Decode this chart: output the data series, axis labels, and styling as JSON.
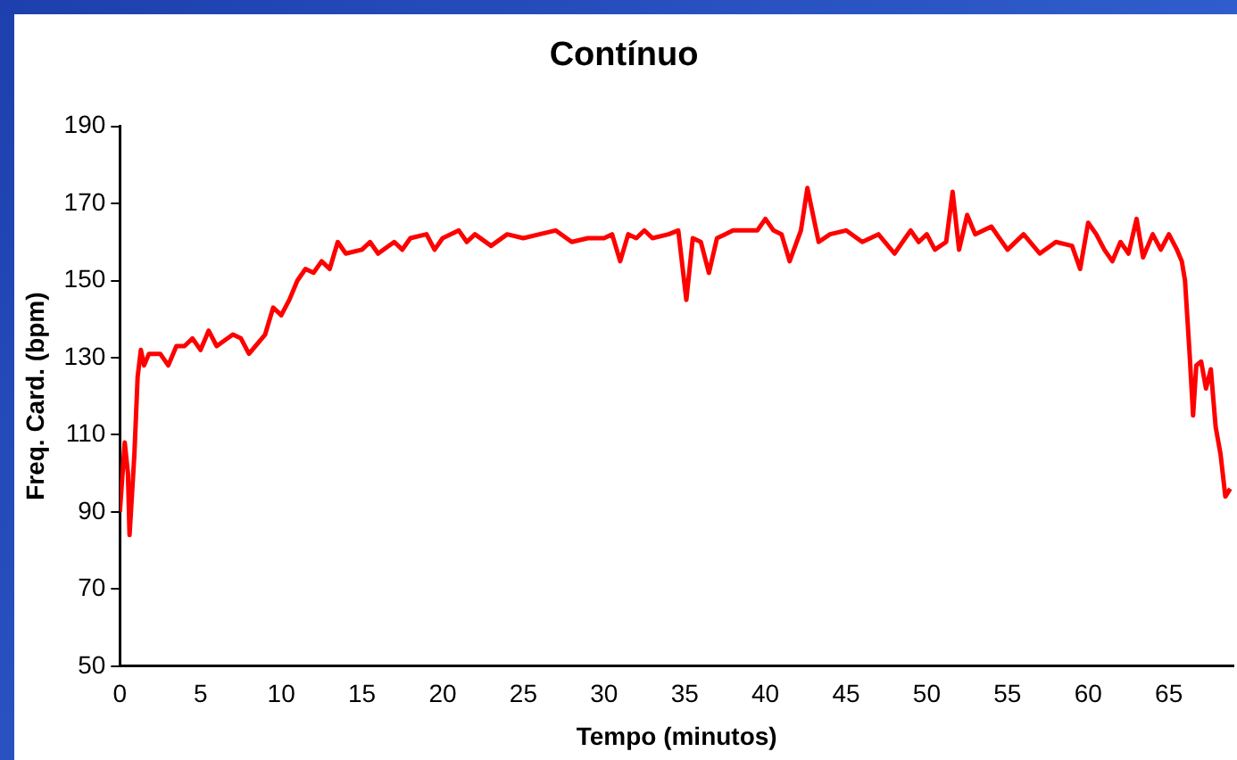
{
  "chart_data": {
    "type": "line",
    "title": "Contínuo",
    "xlabel": "Tempo (minutos)",
    "ylabel": "Freq. Card. (bpm)",
    "x": [
      0,
      0.3,
      0.5,
      0.6,
      0.9,
      1.1,
      1.3,
      1.5,
      1.8,
      2.5,
      3,
      3.5,
      4,
      4.5,
      5,
      5.5,
      6,
      7,
      7.5,
      8,
      9,
      9.5,
      10,
      10.5,
      11,
      11.5,
      12,
      12.5,
      13,
      13.5,
      14,
      15,
      15.5,
      16,
      17,
      17.5,
      18,
      19,
      19.5,
      20,
      21,
      21.5,
      22,
      23,
      24,
      25,
      26,
      27,
      28,
      29,
      30,
      30.5,
      31,
      31.5,
      32,
      32.5,
      33,
      34,
      34.6,
      35.1,
      35.5,
      36,
      36.5,
      37,
      37.5,
      38,
      39,
      39.5,
      40,
      40.5,
      41,
      41.5,
      42.2,
      42.6,
      43.3,
      44,
      45,
      46,
      47,
      48,
      49,
      49.5,
      50,
      50.5,
      51.2,
      51.6,
      52,
      52.5,
      53,
      54,
      55,
      56,
      57,
      58,
      59,
      59.5,
      60,
      60.5,
      61,
      61.5,
      62,
      62.5,
      63,
      63.4,
      64,
      64.5,
      65,
      65.5,
      65.8,
      66,
      66.3,
      66.5,
      66.7,
      67,
      67.3,
      67.6,
      67.9,
      68.2,
      68.5,
      68.8
    ],
    "series": [
      {
        "color": "#ff0000",
        "values": [
          90,
          108,
          100,
          84,
          105,
          125,
          132,
          128,
          131,
          131,
          128,
          133,
          133,
          135,
          132,
          137,
          133,
          136,
          135,
          131,
          136,
          143,
          141,
          145,
          150,
          153,
          152,
          155,
          153,
          160,
          157,
          158,
          160,
          157,
          160,
          158,
          161,
          162,
          158,
          161,
          163,
          160,
          162,
          159,
          162,
          161,
          162,
          163,
          160,
          161,
          161,
          162,
          155,
          162,
          161,
          163,
          161,
          162,
          163,
          145,
          161,
          160,
          152,
          161,
          162,
          163,
          163,
          163,
          166,
          163,
          162,
          155,
          163,
          174,
          160,
          162,
          163,
          160,
          162,
          157,
          163,
          160,
          162,
          158,
          160,
          173,
          158,
          167,
          162,
          164,
          158,
          162,
          157,
          160,
          159,
          153,
          165,
          162,
          158,
          155,
          160,
          157,
          166,
          156,
          162,
          158,
          162,
          158,
          155,
          150,
          130,
          115,
          128,
          129,
          122,
          127,
          112,
          105,
          94,
          96
        ]
      }
    ],
    "xlim": [
      0,
      69
    ],
    "xticks": [
      0,
      5,
      10,
      15,
      20,
      25,
      30,
      35,
      40,
      45,
      50,
      55,
      60,
      65
    ],
    "ylim": [
      50,
      190
    ],
    "yticks": [
      50,
      70,
      90,
      110,
      130,
      150,
      170,
      190
    ],
    "grid": false,
    "legend": false,
    "marker": "none",
    "line_style": "solid"
  }
}
